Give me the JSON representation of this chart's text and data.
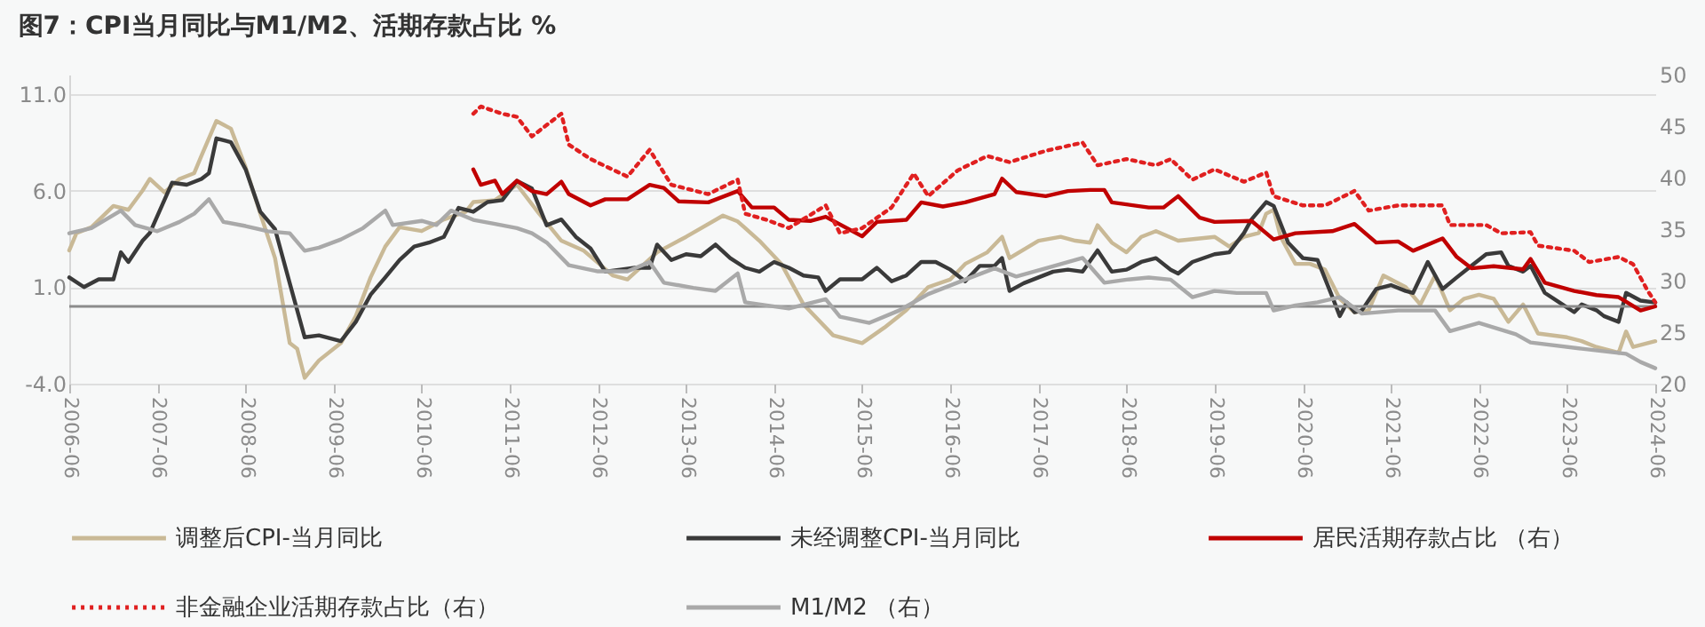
{
  "chart_data": {
    "type": "line",
    "title": "图7：CPI当月同比与M1/M2、活期存款占比 %",
    "ylim": [
      -4,
      12
    ],
    "yticks": [
      {
        "value": -4,
        "label": "-4.0"
      },
      {
        "value": 1,
        "label": "1.0"
      },
      {
        "value": 6,
        "label": "6.0"
      },
      {
        "value": 11,
        "label": "11.0"
      }
    ],
    "y2lim": [
      20,
      50
    ],
    "y2ticks": [
      20,
      25,
      30,
      35,
      40,
      45,
      50
    ],
    "xlim": [
      "2006-06",
      "2024-06"
    ],
    "xticks": [
      "2006-06",
      "2007-06",
      "2008-06",
      "2009-06",
      "2010-06",
      "2011-06",
      "2012-06",
      "2013-06",
      "2014-06",
      "2015-06",
      "2016-06",
      "2017-06",
      "2018-06",
      "2019-06",
      "2020-06",
      "2021-06",
      "2022-06",
      "2023-06",
      "2024-06"
    ],
    "grid": "y",
    "legend": "bottom",
    "ref_lines": [
      {
        "axis": "y",
        "value": 0,
        "color": "#8c8c8c"
      }
    ],
    "series": [
      {
        "name": "调整后CPI-当月同比",
        "color": "#c9b996",
        "line_style": "solid",
        "x": [
          "2006-06",
          "2006-07",
          "2006-09",
          "2006-12",
          "2007-02",
          "2007-04",
          "2007-05",
          "2007-07",
          "2007-09",
          "2007-11",
          "2007-12",
          "2008-02",
          "2008-04",
          "2008-06",
          "2008-08",
          "2008-10",
          "2008-12",
          "2009-01",
          "2009-02",
          "2009-04",
          "2009-07",
          "2009-09",
          "2009-11",
          "2010-01",
          "2010-03",
          "2010-06",
          "2010-09",
          "2010-12",
          "2011-01",
          "2011-04",
          "2011-07",
          "2011-10",
          "2012-01",
          "2012-04",
          "2012-08",
          "2012-10",
          "2013-02",
          "2013-06",
          "2013-11",
          "2014-01",
          "2014-04",
          "2014-07",
          "2014-10",
          "2015-02",
          "2015-06",
          "2015-09",
          "2015-12",
          "2016-03",
          "2016-06",
          "2016-08",
          "2016-11",
          "2017-01",
          "2017-02",
          "2017-06",
          "2017-09",
          "2017-11",
          "2018-01",
          "2018-02",
          "2018-04",
          "2018-06",
          "2018-08",
          "2018-10",
          "2019-01",
          "2019-06",
          "2019-08",
          "2019-10",
          "2019-12",
          "2020-01",
          "2020-02",
          "2020-03",
          "2020-05",
          "2020-07",
          "2020-09",
          "2020-11",
          "2021-01",
          "2021-03",
          "2021-05",
          "2021-08",
          "2021-10",
          "2021-12",
          "2022-02",
          "2022-04",
          "2022-06",
          "2022-08",
          "2022-10",
          "2022-12",
          "2023-02",
          "2023-06",
          "2023-08",
          "2023-10",
          "2024-01",
          "2024-02",
          "2024-03",
          "2024-06"
        ],
        "values": [
          2.9,
          3.8,
          4.1,
          5.2,
          5.0,
          6.0,
          6.6,
          5.9,
          6.6,
          6.9,
          7.8,
          9.6,
          9.2,
          7.2,
          4.8,
          2.5,
          -1.9,
          -2.2,
          -3.7,
          -2.8,
          -1.9,
          -0.5,
          1.5,
          3.1,
          4.1,
          3.9,
          4.5,
          4.9,
          5.4,
          5.5,
          6.3,
          4.8,
          3.4,
          2.9,
          1.6,
          1.4,
          2.8,
          3.6,
          4.7,
          4.4,
          3.4,
          2.2,
          0.1,
          -1.5,
          -1.9,
          -1.1,
          -0.2,
          1.0,
          1.4,
          2.2,
          2.8,
          3.6,
          2.5,
          3.4,
          3.6,
          3.4,
          3.3,
          4.2,
          3.3,
          2.8,
          3.6,
          3.9,
          3.4,
          3.6,
          3.1,
          3.6,
          3.8,
          4.8,
          5.0,
          3.6,
          2.2,
          2.2,
          1.9,
          0.4,
          -0.3,
          -0.2,
          1.6,
          1.0,
          0.1,
          1.6,
          -0.2,
          0.4,
          0.6,
          0.4,
          -0.8,
          0.1,
          -1.4,
          -1.6,
          -1.8,
          -2.1,
          -2.4,
          -1.3,
          -2.1,
          -1.8
        ]
      },
      {
        "name": "未经调整CPI-当月同比",
        "color": "#3a3a3a",
        "line_style": "solid",
        "x": [
          "2006-06",
          "2006-08",
          "2006-10",
          "2006-12",
          "2007-01",
          "2007-02",
          "2007-04",
          "2007-05",
          "2007-08",
          "2007-10",
          "2007-12",
          "2008-01",
          "2008-02",
          "2008-04",
          "2008-06",
          "2008-08",
          "2008-10",
          "2008-12",
          "2009-02",
          "2009-04",
          "2009-07",
          "2009-09",
          "2009-11",
          "2010-01",
          "2010-03",
          "2010-05",
          "2010-07",
          "2010-09",
          "2010-11",
          "2011-01",
          "2011-03",
          "2011-05",
          "2011-07",
          "2011-09",
          "2011-11",
          "2012-01",
          "2012-03",
          "2012-05",
          "2012-07",
          "2012-09",
          "2012-11",
          "2013-01",
          "2013-02",
          "2013-04",
          "2013-06",
          "2013-08",
          "2013-10",
          "2013-12",
          "2014-02",
          "2014-04",
          "2014-06",
          "2014-08",
          "2014-10",
          "2014-12",
          "2015-01",
          "2015-03",
          "2015-06",
          "2015-08",
          "2015-10",
          "2015-12",
          "2016-02",
          "2016-04",
          "2016-06",
          "2016-08",
          "2016-10",
          "2016-12",
          "2017-01",
          "2017-02",
          "2017-04",
          "2017-06",
          "2017-08",
          "2017-10",
          "2017-12",
          "2018-02",
          "2018-04",
          "2018-06",
          "2018-08",
          "2018-10",
          "2018-12",
          "2019-01",
          "2019-03",
          "2019-06",
          "2019-08",
          "2019-10",
          "2019-11",
          "2020-01",
          "2020-02",
          "2020-04",
          "2020-06",
          "2020-08",
          "2020-10",
          "2020-11",
          "2020-12",
          "2021-01",
          "2021-02",
          "2021-04",
          "2021-06",
          "2021-08",
          "2021-09",
          "2021-11",
          "2022-01",
          "2022-03",
          "2022-05",
          "2022-07",
          "2022-09",
          "2022-10",
          "2022-12",
          "2023-01",
          "2023-03",
          "2023-05",
          "2023-07",
          "2023-08",
          "2023-10",
          "2023-11",
          "2024-01",
          "2024-02",
          "2024-04",
          "2024-06"
        ],
        "values": [
          1.5,
          1.0,
          1.4,
          1.4,
          2.8,
          2.3,
          3.4,
          3.8,
          6.4,
          6.3,
          6.6,
          6.9,
          8.7,
          8.5,
          7.1,
          4.9,
          4.0,
          1.2,
          -1.6,
          -1.5,
          -1.8,
          -0.8,
          0.6,
          1.5,
          2.4,
          3.1,
          3.3,
          3.6,
          5.1,
          4.9,
          5.4,
          5.5,
          6.5,
          6.1,
          4.2,
          4.5,
          3.6,
          3.0,
          1.8,
          1.9,
          2.0,
          2.0,
          3.2,
          2.4,
          2.7,
          2.6,
          3.2,
          2.5,
          2.0,
          1.8,
          2.3,
          2.0,
          1.6,
          1.5,
          0.8,
          1.4,
          1.4,
          2.0,
          1.3,
          1.6,
          2.3,
          2.3,
          1.9,
          1.3,
          2.1,
          2.1,
          2.5,
          0.8,
          1.2,
          1.5,
          1.8,
          1.9,
          1.8,
          2.9,
          1.8,
          1.9,
          2.3,
          2.5,
          1.9,
          1.7,
          2.3,
          2.7,
          2.8,
          3.8,
          4.5,
          5.4,
          5.2,
          3.3,
          2.5,
          2.4,
          0.5,
          -0.5,
          0.2,
          -0.3,
          -0.2,
          0.9,
          1.1,
          0.8,
          0.7,
          2.3,
          0.9,
          1.5,
          2.1,
          2.7,
          2.8,
          2.1,
          1.8,
          2.1,
          0.7,
          0.2,
          -0.3,
          0.1,
          -0.2,
          -0.5,
          -0.8,
          0.7,
          0.3,
          0.2
        ]
      },
      {
        "name": "居民活期存款占比 （右）",
        "color": "#c00000",
        "line_style": "solid",
        "axis": "y2",
        "x": [
          "2011-01",
          "2011-02",
          "2011-04",
          "2011-05",
          "2011-07",
          "2011-09",
          "2011-11",
          "2012-01",
          "2012-02",
          "2012-05",
          "2012-07",
          "2012-10",
          "2013-01",
          "2013-03",
          "2013-05",
          "2013-09",
          "2014-01",
          "2014-03",
          "2014-06",
          "2014-08",
          "2014-11",
          "2015-01",
          "2015-06",
          "2015-08",
          "2015-12",
          "2016-02",
          "2016-05",
          "2016-08",
          "2016-12",
          "2017-01",
          "2017-03",
          "2017-07",
          "2017-10",
          "2018-01",
          "2018-03",
          "2018-04",
          "2018-09",
          "2018-11",
          "2019-01",
          "2019-04",
          "2019-06",
          "2019-11",
          "2020-02",
          "2020-05",
          "2020-10",
          "2021-01",
          "2021-04",
          "2021-07",
          "2021-09",
          "2022-01",
          "2022-03",
          "2022-05",
          "2022-08",
          "2022-12",
          "2023-01",
          "2023-03",
          "2023-07",
          "2023-10",
          "2024-01",
          "2024-04",
          "2024-06"
        ],
        "values": [
          40.8,
          39.3,
          39.7,
          38.4,
          39.7,
          38.7,
          38.4,
          39.6,
          38.4,
          37.3,
          37.9,
          37.9,
          39.3,
          39.0,
          37.7,
          37.6,
          38.7,
          37.1,
          37.1,
          35.9,
          35.8,
          36.2,
          34.3,
          35.7,
          35.9,
          37.6,
          37.2,
          37.6,
          38.4,
          39.9,
          38.6,
          38.2,
          38.7,
          38.8,
          38.8,
          37.6,
          37.1,
          37.1,
          38.2,
          36.1,
          35.7,
          35.8,
          34.0,
          34.6,
          34.8,
          35.5,
          33.7,
          33.8,
          32.9,
          34.1,
          32.3,
          31.2,
          31.4,
          31.1,
          32.1,
          29.8,
          29.0,
          28.6,
          28.4,
          27.1,
          27.5
        ]
      },
      {
        "name": "非金融企业活期存款占比（右）",
        "color": "#e02020",
        "line_style": "dotted",
        "axis": "y2",
        "x": [
          "2011-01",
          "2011-02",
          "2011-05",
          "2011-07",
          "2011-09",
          "2012-01",
          "2012-02",
          "2012-05",
          "2012-10",
          "2013-01",
          "2013-04",
          "2013-09",
          "2014-01",
          "2014-02",
          "2014-05",
          "2014-08",
          "2015-01",
          "2015-03",
          "2015-06",
          "2015-10",
          "2016-01",
          "2016-03",
          "2016-07",
          "2016-11",
          "2017-02",
          "2017-07",
          "2017-12",
          "2018-02",
          "2018-06",
          "2018-10",
          "2018-12",
          "2019-03",
          "2019-06",
          "2019-10",
          "2020-01",
          "2020-02",
          "2020-06",
          "2020-09",
          "2021-01",
          "2021-03",
          "2021-07",
          "2022-01",
          "2022-02",
          "2022-07",
          "2022-09",
          "2023-01",
          "2023-02",
          "2023-07",
          "2023-09",
          "2024-01",
          "2024-03",
          "2024-05",
          "2024-06"
        ],
        "values": [
          46.2,
          46.9,
          46.2,
          45.9,
          44.0,
          46.2,
          43.2,
          41.8,
          40.1,
          42.7,
          39.3,
          38.4,
          39.8,
          36.5,
          35.9,
          35.1,
          37.3,
          34.6,
          35.1,
          37.1,
          40.4,
          38.2,
          40.7,
          42.1,
          41.5,
          42.6,
          43.4,
          41.2,
          41.8,
          41.2,
          41.8,
          39.8,
          40.8,
          39.6,
          40.5,
          38.2,
          37.3,
          37.3,
          38.7,
          36.8,
          37.3,
          37.3,
          35.4,
          35.4,
          34.6,
          34.7,
          33.4,
          32.9,
          31.8,
          32.3,
          31.6,
          29.0,
          27.9
        ]
      },
      {
        "name": "M1/M2 （右）",
        "color": "#a9a9a9",
        "line_style": "solid",
        "axis": "y2",
        "x": [
          "2006-06",
          "2006-09",
          "2007-01",
          "2007-03",
          "2007-06",
          "2007-09",
          "2007-11",
          "2008-01",
          "2008-03",
          "2008-06",
          "2008-09",
          "2008-12",
          "2009-02",
          "2009-04",
          "2009-07",
          "2009-10",
          "2010-01",
          "2010-02",
          "2010-06",
          "2010-08",
          "2010-10",
          "2011-01",
          "2011-04",
          "2011-07",
          "2011-09",
          "2011-11",
          "2012-02",
          "2012-06",
          "2012-10",
          "2013-01",
          "2013-03",
          "2013-07",
          "2013-10",
          "2014-01",
          "2014-02",
          "2014-05",
          "2014-08",
          "2015-01",
          "2015-03",
          "2015-07",
          "2015-11",
          "2016-03",
          "2016-08",
          "2016-12",
          "2017-03",
          "2017-07",
          "2017-12",
          "2018-03",
          "2018-06",
          "2018-09",
          "2018-12",
          "2019-03",
          "2019-06",
          "2019-09",
          "2020-01",
          "2020-02",
          "2020-05",
          "2020-08",
          "2020-11",
          "2021-02",
          "2021-07",
          "2021-12",
          "2022-02",
          "2022-06",
          "2022-11",
          "2023-01",
          "2023-08",
          "2024-02",
          "2024-04",
          "2024-06"
        ],
        "values": [
          34.6,
          35.1,
          36.8,
          35.4,
          34.8,
          35.7,
          36.5,
          37.9,
          35.7,
          35.3,
          34.8,
          34.6,
          32.9,
          33.2,
          34.0,
          35.1,
          36.8,
          35.4,
          35.8,
          35.4,
          36.8,
          35.9,
          35.5,
          35.1,
          34.6,
          33.7,
          31.5,
          30.9,
          30.9,
          31.8,
          29.8,
          29.3,
          29.0,
          30.7,
          27.9,
          27.6,
          27.3,
          28.2,
          26.5,
          25.9,
          27.1,
          28.7,
          30.1,
          31.2,
          30.4,
          31.2,
          32.2,
          29.8,
          30.1,
          30.3,
          30.1,
          28.4,
          29.0,
          28.8,
          28.8,
          27.1,
          27.6,
          27.9,
          28.4,
          26.8,
          27.1,
          27.1,
          25.1,
          25.9,
          24.8,
          24.0,
          23.4,
          22.9,
          22.1,
          21.5
        ]
      }
    ]
  }
}
